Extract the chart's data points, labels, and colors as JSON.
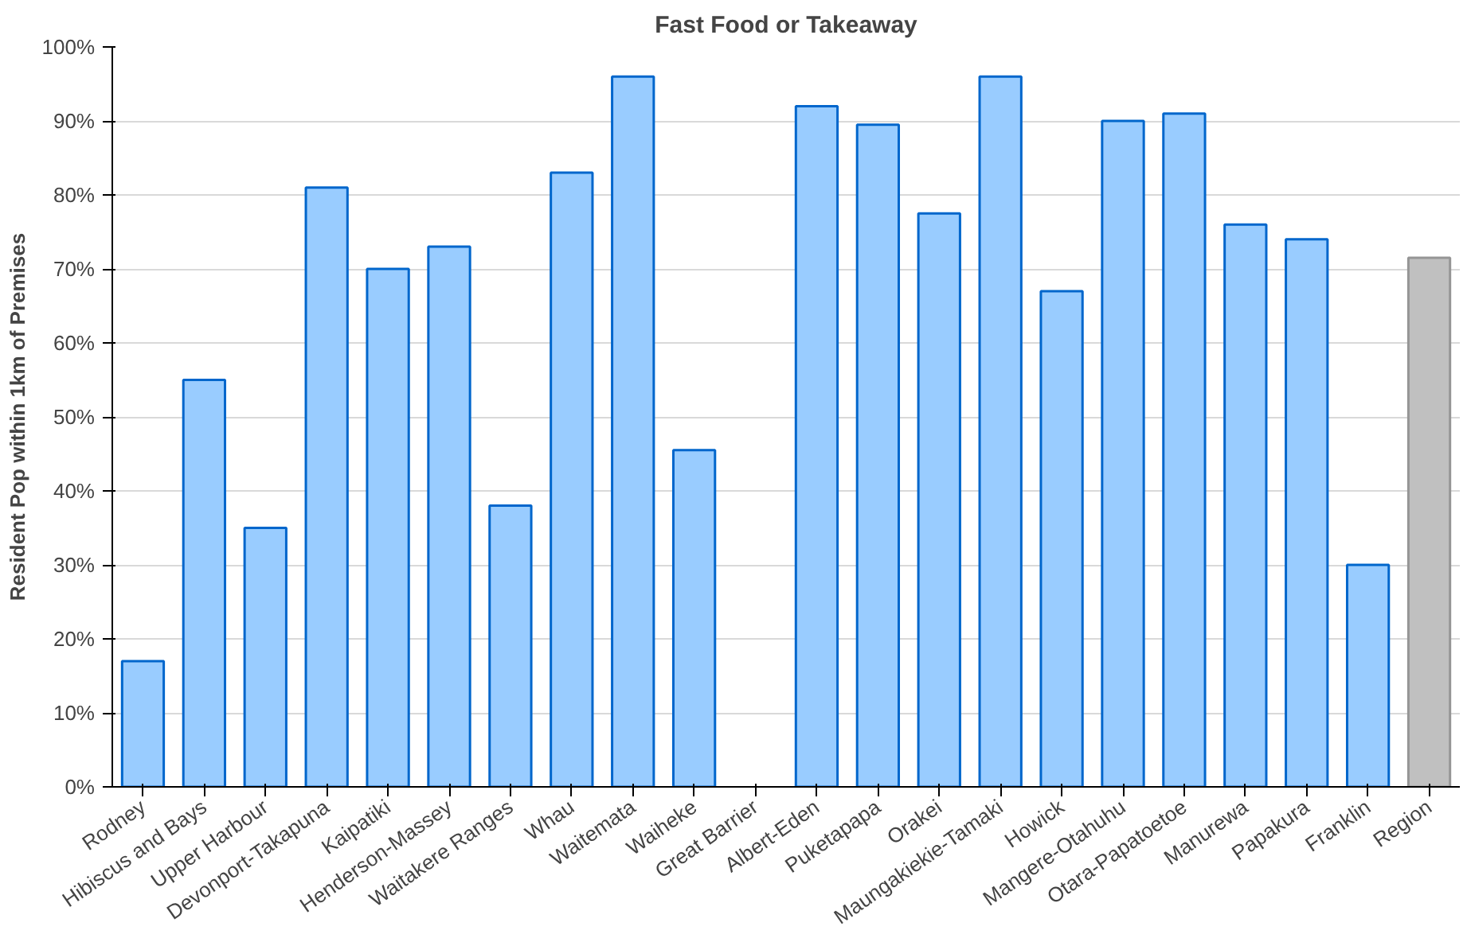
{
  "chart_data": {
    "type": "bar",
    "title": "Fast Food or Takeaway",
    "ylabel": "Resident Pop within 1km of Premises",
    "categories": [
      "Rodney",
      "Hibiscus and Bays",
      "Upper Harbour",
      "Devonport-Takapuna",
      "Kaipatiki",
      "Henderson-Massey",
      "Waitakere Ranges",
      "Whau",
      "Waitemata",
      "Waiheke",
      "Great Barrier",
      "Albert-Eden",
      "Puketapapa",
      "Orakei",
      "Maungakiekie-Tamaki",
      "Howick",
      "Mangere-Otahuhu",
      "Otara-Papatoetoe",
      "Manurewa",
      "Papakura",
      "Franklin",
      "Region"
    ],
    "values": [
      17,
      55,
      35,
      81,
      70,
      73,
      38,
      83,
      96,
      45.5,
      null,
      92,
      89.5,
      77.5,
      96,
      67,
      90,
      91,
      76,
      74,
      30,
      71.5
    ],
    "colors": [
      "#99ccff",
      "#99ccff",
      "#99ccff",
      "#99ccff",
      "#99ccff",
      "#99ccff",
      "#99ccff",
      "#99ccff",
      "#99ccff",
      "#99ccff",
      "#99ccff",
      "#99ccff",
      "#99ccff",
      "#99ccff",
      "#99ccff",
      "#99ccff",
      "#99ccff",
      "#99ccff",
      "#99ccff",
      "#99ccff",
      "#99ccff",
      "#c0c0c0"
    ],
    "ylim": [
      0,
      100
    ],
    "yticks": [
      {
        "value": 0,
        "label": "0%"
      },
      {
        "value": 10,
        "label": "10%"
      },
      {
        "value": 20,
        "label": "20%"
      },
      {
        "value": 30,
        "label": "30%"
      },
      {
        "value": 40,
        "label": "40%"
      },
      {
        "value": 50,
        "label": "50%"
      },
      {
        "value": 60,
        "label": "60%"
      },
      {
        "value": 70,
        "label": "70%"
      },
      {
        "value": 80,
        "label": "80%"
      },
      {
        "value": 90,
        "label": "90%"
      },
      {
        "value": 100,
        "label": "100%"
      }
    ],
    "grid": "y"
  }
}
